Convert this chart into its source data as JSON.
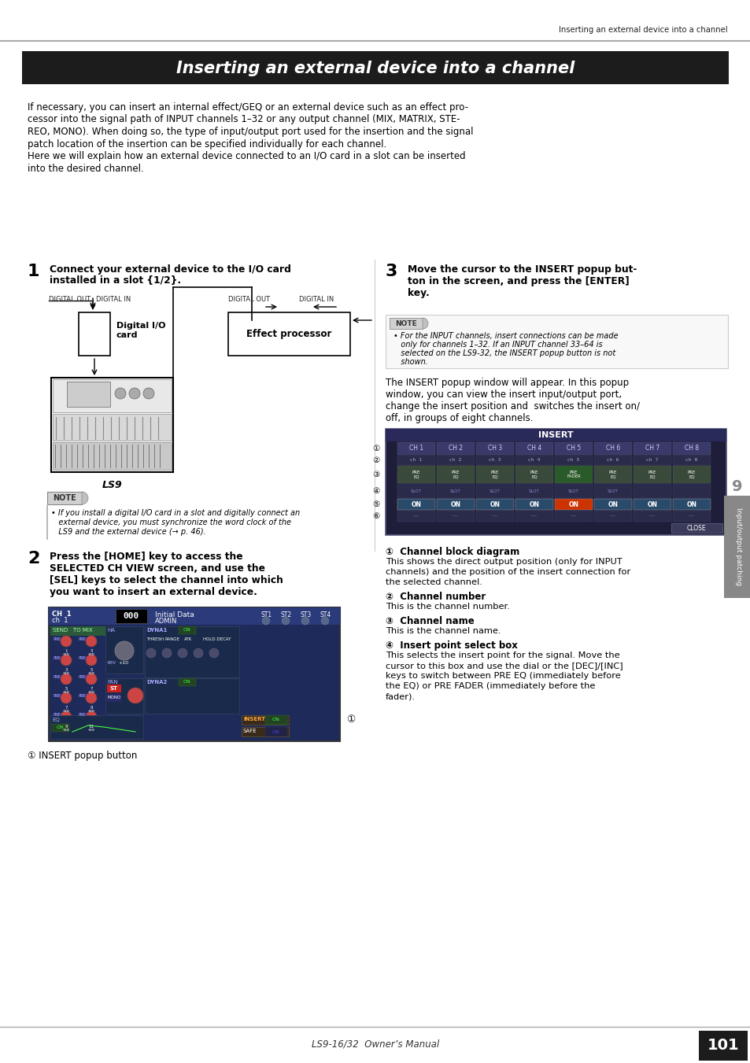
{
  "page_title_header": "Inserting an external device into a channel",
  "main_title": "Inserting an external device into a channel",
  "bg_color": "#ffffff",
  "text_color": "#000000",
  "header_bar_color": "#999999",
  "title_bg": "#1c1c1c",
  "intro_lines": [
    "If necessary, you can insert an internal effect/GEQ or an external device such as an effect pro-",
    "cessor into the signal path of INPUT channels 1–32 or any output channel (MIX, MATRIX, STE-",
    "REO, MONO). When doing so, the type of input/output port used for the insertion and the signal",
    "patch location of the insertion can be specified individually for each channel.",
    "Here we will explain how an external device connected to an I/O card in a slot can be inserted",
    "into the desired channel."
  ],
  "step1_header": "Connect your external device to the I/O card",
  "step1_header2": "installed in a slot {1/2}.",
  "step2_header": "Press the [HOME] key to access the",
  "step2_header2": "SELECTED CH VIEW screen, and use the",
  "step2_header3": "[SEL] keys to select the channel into which",
  "step2_header4": "you want to insert an external device.",
  "step3_header": "Move the cursor to the INSERT popup but-",
  "step3_header2": "ton in the screen, and press the [ENTER]",
  "step3_header3": "key.",
  "note1_lines": [
    "• If you install a digital I/O card in a slot and digitally connect an",
    "   external device, you must synchronize the word clock of the",
    "   LS9 and the external device (→ p. 46)."
  ],
  "note2_lines": [
    "• For the INPUT channels, insert connections can be made",
    "   only for channels 1–32. If an INPUT channel 33–64 is",
    "   selected on the LS9-32, the INSERT popup button is not",
    "   shown."
  ],
  "insert_step3_body_lines": [
    "The INSERT popup window will appear. In this popup",
    "window, you can view the insert input/output port,",
    "change the insert position and  switches the insert on/",
    "off, in groups of eight channels."
  ],
  "insert_popup_btn_label": "① INSERT popup button",
  "ch_block_label": "①  Channel block diagram",
  "ch_block_body": [
    "This shows the direct output position (only for INPUT",
    "channels) and the position of the insert connection for",
    "the selected channel."
  ],
  "ch_num_label": "②  Channel number",
  "ch_num_body": [
    "This is the channel number."
  ],
  "ch_name_label": "③  Channel name",
  "ch_name_body": [
    "This is the channel name."
  ],
  "insert_pt_label": "④  Insert point select box",
  "insert_pt_body": [
    "This selects the insert point for the signal. Move the",
    "cursor to this box and use the dial or the [DEC]/[INC]",
    "keys to switch between PRE EQ (immediately before",
    "the EQ) or PRE FADER (immediately before the",
    "fader)."
  ],
  "footer_text": "LS9-16/32  Owner’s Manual",
  "page_num": "101",
  "tab_label": "Input/output patching",
  "section_num": "9"
}
